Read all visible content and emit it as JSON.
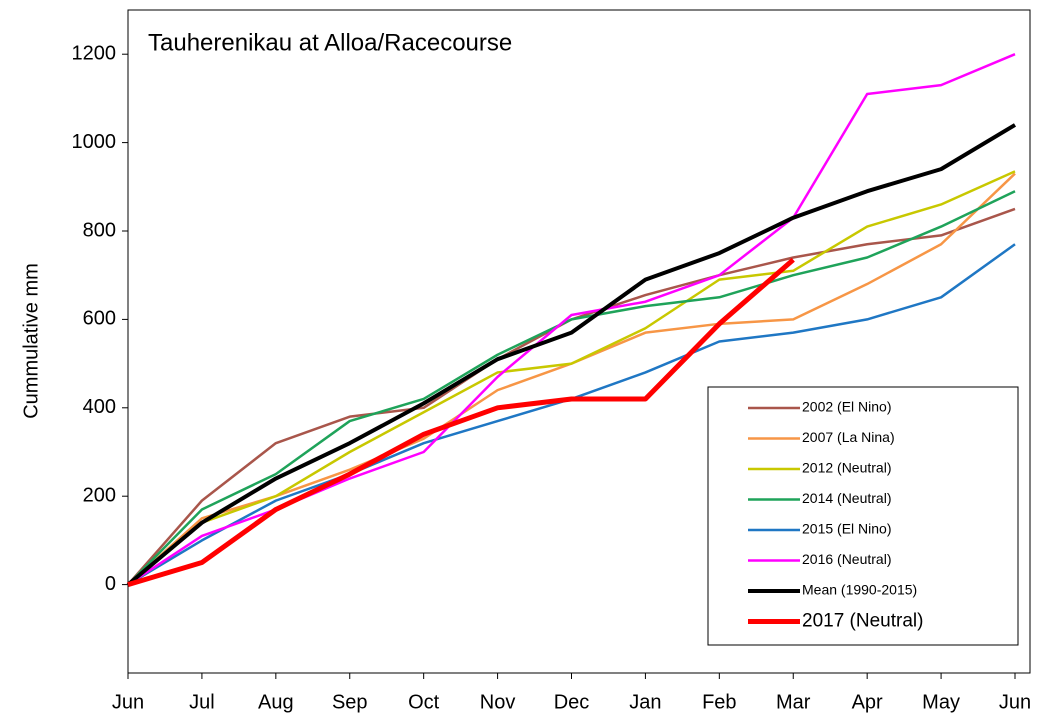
{
  "chart_data": {
    "type": "line",
    "title": "Tauherenikau at Alloa/Racecourse",
    "y_label": "Cummulative mm",
    "categories": [
      "Jun",
      "Jul",
      "Aug",
      "Sep",
      "Oct",
      "Nov",
      "Dec",
      "Jan",
      "Feb",
      "Mar",
      "Apr",
      "May",
      "Jun"
    ],
    "ylim": [
      -200,
      1300
    ],
    "yticks": [
      0,
      200,
      400,
      600,
      800,
      1000,
      1200
    ],
    "legend": "lower right",
    "series": [
      {
        "name": "2002 (El Nino)",
        "color": "#a9564b",
        "line_width": 2.5,
        "values": [
          0,
          190,
          320,
          380,
          400,
          510,
          600,
          655,
          700,
          740,
          770,
          790,
          850
        ]
      },
      {
        "name": "2007 (La Nina)",
        "color": "#f79646",
        "line_width": 2.5,
        "values": [
          0,
          150,
          200,
          260,
          330,
          440,
          500,
          570,
          590,
          600,
          680,
          770,
          930
        ]
      },
      {
        "name": "2012 (Neutral)",
        "color": "#c8c800",
        "line_width": 2.5,
        "values": [
          0,
          140,
          200,
          300,
          390,
          480,
          500,
          580,
          690,
          710,
          810,
          860,
          935
        ]
      },
      {
        "name": "2014 (Neutral)",
        "color": "#1fa35a",
        "line_width": 2.5,
        "values": [
          0,
          170,
          250,
          370,
          420,
          520,
          600,
          630,
          650,
          700,
          740,
          810,
          890
        ]
      },
      {
        "name": "2015 (El Nino)",
        "color": "#1f77c4",
        "line_width": 2.5,
        "values": [
          0,
          100,
          190,
          250,
          320,
          370,
          420,
          480,
          550,
          570,
          600,
          650,
          770
        ]
      },
      {
        "name": "2016 (Neutral)",
        "color": "#ff00ff",
        "line_width": 2.5,
        "values": [
          0,
          110,
          170,
          240,
          300,
          470,
          610,
          640,
          700,
          830,
          1110,
          1130,
          1200
        ]
      },
      {
        "name": "Mean (1990-2015)",
        "color": "#000000",
        "line_width": 4,
        "values": [
          0,
          140,
          240,
          320,
          410,
          510,
          570,
          690,
          750,
          830,
          890,
          940,
          1040
        ]
      },
      {
        "name": "2017 (Neutral)",
        "color": "#ff0000",
        "line_width": 5,
        "values": [
          0,
          50,
          170,
          250,
          340,
          400,
          420,
          420,
          590,
          735,
          null,
          null,
          null
        ]
      }
    ]
  }
}
